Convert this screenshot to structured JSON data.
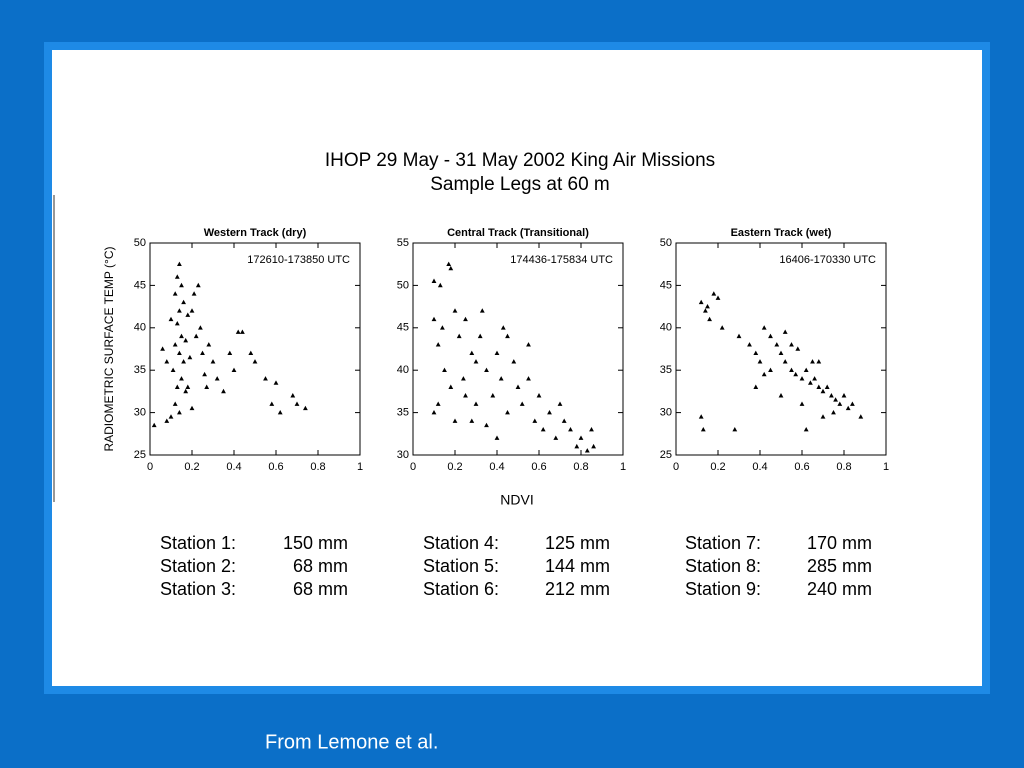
{
  "header": {
    "title": "IHOP 29 May - 31 May 2002 King Air Missions",
    "subtitle": "Sample Legs at 60 m"
  },
  "xlabel": "NDVI",
  "chart_data": [
    {
      "type": "scatter",
      "title": "Western Track (dry)",
      "annotation": "172610-173850 UTC",
      "ylabel": "RADIOMETRIC SURFACE TEMP (°C)",
      "color": "#000000",
      "x": [
        0.14,
        0.13,
        0.15,
        0.12,
        0.16,
        0.14,
        0.18,
        0.13,
        0.15,
        0.17,
        0.12,
        0.14,
        0.16,
        0.19,
        0.11,
        0.15,
        0.13,
        0.17,
        0.12,
        0.14,
        0.1,
        0.08,
        0.02,
        0.06,
        0.08,
        0.1,
        0.2,
        0.22,
        0.25,
        0.24,
        0.28,
        0.3,
        0.32,
        0.27,
        0.35,
        0.4,
        0.42,
        0.44,
        0.38,
        0.5,
        0.55,
        0.58,
        0.62,
        0.6,
        0.68,
        0.7,
        0.74,
        0.21,
        0.23,
        0.18,
        0.2,
        0.26,
        0.48
      ],
      "y": [
        47.5,
        46,
        45,
        44,
        43,
        42,
        41.5,
        40.5,
        39,
        38.5,
        38,
        37,
        36,
        36.5,
        35,
        34,
        33,
        32.5,
        31,
        30,
        29.5,
        29,
        28.5,
        37.5,
        36,
        41,
        42,
        39,
        37,
        40,
        38,
        36,
        34,
        33,
        32.5,
        35,
        39.5,
        39.5,
        37,
        36,
        34,
        31,
        30,
        33.5,
        32,
        31,
        30.5,
        44,
        45,
        33,
        30.5,
        34.5,
        37
      ],
      "xlim": [
        0,
        1
      ],
      "xticks": [
        0,
        0.2,
        0.4,
        0.6,
        0.8,
        1
      ],
      "ylim": [
        25,
        50
      ],
      "yticks": [
        25,
        30,
        35,
        40,
        45,
        50
      ]
    },
    {
      "type": "scatter",
      "title": "Central Track (Transitional)",
      "annotation": "174436-175834 UTC",
      "color": "#000000",
      "x": [
        0.1,
        0.13,
        0.17,
        0.18,
        0.1,
        0.14,
        0.12,
        0.2,
        0.22,
        0.25,
        0.28,
        0.15,
        0.18,
        0.12,
        0.1,
        0.2,
        0.24,
        0.3,
        0.32,
        0.35,
        0.38,
        0.4,
        0.42,
        0.45,
        0.48,
        0.5,
        0.52,
        0.55,
        0.58,
        0.6,
        0.62,
        0.65,
        0.68,
        0.7,
        0.72,
        0.75,
        0.78,
        0.8,
        0.83,
        0.85,
        0.86,
        0.3,
        0.35,
        0.4,
        0.45,
        0.25,
        0.28,
        0.55,
        0.33,
        0.43
      ],
      "y": [
        50.5,
        50,
        52.5,
        52,
        46,
        45,
        43,
        47,
        44,
        46,
        42,
        40,
        38,
        36,
        35,
        34,
        39,
        41,
        44,
        40,
        37,
        42,
        39,
        35,
        41,
        38,
        36,
        39,
        34,
        37,
        33,
        35,
        32,
        36,
        34,
        33,
        31,
        32,
        30.5,
        33,
        31,
        36,
        33.5,
        32,
        44,
        37,
        34,
        43,
        47,
        45
      ],
      "xlim": [
        0,
        1
      ],
      "xticks": [
        0,
        0.2,
        0.4,
        0.6,
        0.8,
        1
      ],
      "ylim": [
        30,
        55
      ],
      "yticks": [
        30,
        35,
        40,
        45,
        50,
        55
      ]
    },
    {
      "type": "scatter",
      "title": "Eastern Track (wet)",
      "annotation": "16406-170330 UTC",
      "color": "#000000",
      "x": [
        0.12,
        0.15,
        0.18,
        0.2,
        0.16,
        0.22,
        0.14,
        0.12,
        0.13,
        0.28,
        0.3,
        0.35,
        0.38,
        0.4,
        0.42,
        0.45,
        0.48,
        0.5,
        0.52,
        0.55,
        0.57,
        0.6,
        0.62,
        0.64,
        0.66,
        0.68,
        0.7,
        0.72,
        0.74,
        0.76,
        0.78,
        0.8,
        0.82,
        0.84,
        0.88,
        0.45,
        0.5,
        0.55,
        0.6,
        0.65,
        0.7,
        0.38,
        0.42,
        0.58,
        0.62,
        0.75,
        0.52,
        0.68
      ],
      "y": [
        43,
        42.5,
        44,
        43.5,
        41,
        40,
        42,
        29.5,
        28,
        28,
        39,
        38,
        37,
        36,
        40,
        39,
        38,
        37,
        36,
        35,
        34.5,
        34,
        35,
        33.5,
        34,
        33,
        32.5,
        33,
        32,
        31.5,
        31,
        32,
        30.5,
        31,
        29.5,
        35,
        32,
        38,
        31,
        36,
        29.5,
        33,
        34.5,
        37.5,
        28,
        30,
        39.5,
        36
      ],
      "xlim": [
        0,
        1
      ],
      "xticks": [
        0,
        0.2,
        0.4,
        0.6,
        0.8,
        1
      ],
      "ylim": [
        25,
        50
      ],
      "yticks": [
        25,
        30,
        35,
        40,
        45,
        50
      ]
    }
  ],
  "stations": [
    [
      [
        "Station 1:",
        "150 mm"
      ],
      [
        "Station 2:",
        "68 mm"
      ],
      [
        "Station 3:",
        "68 mm"
      ]
    ],
    [
      [
        "Station 4:",
        "125 mm"
      ],
      [
        "Station 5:",
        "144 mm"
      ],
      [
        "Station 6:",
        "212 mm"
      ]
    ],
    [
      [
        "Station 7:",
        "170 mm"
      ],
      [
        "Station 8:",
        "285 mm"
      ],
      [
        "Station 9:",
        "240 mm"
      ]
    ]
  ],
  "footer": "From Lemone et al."
}
